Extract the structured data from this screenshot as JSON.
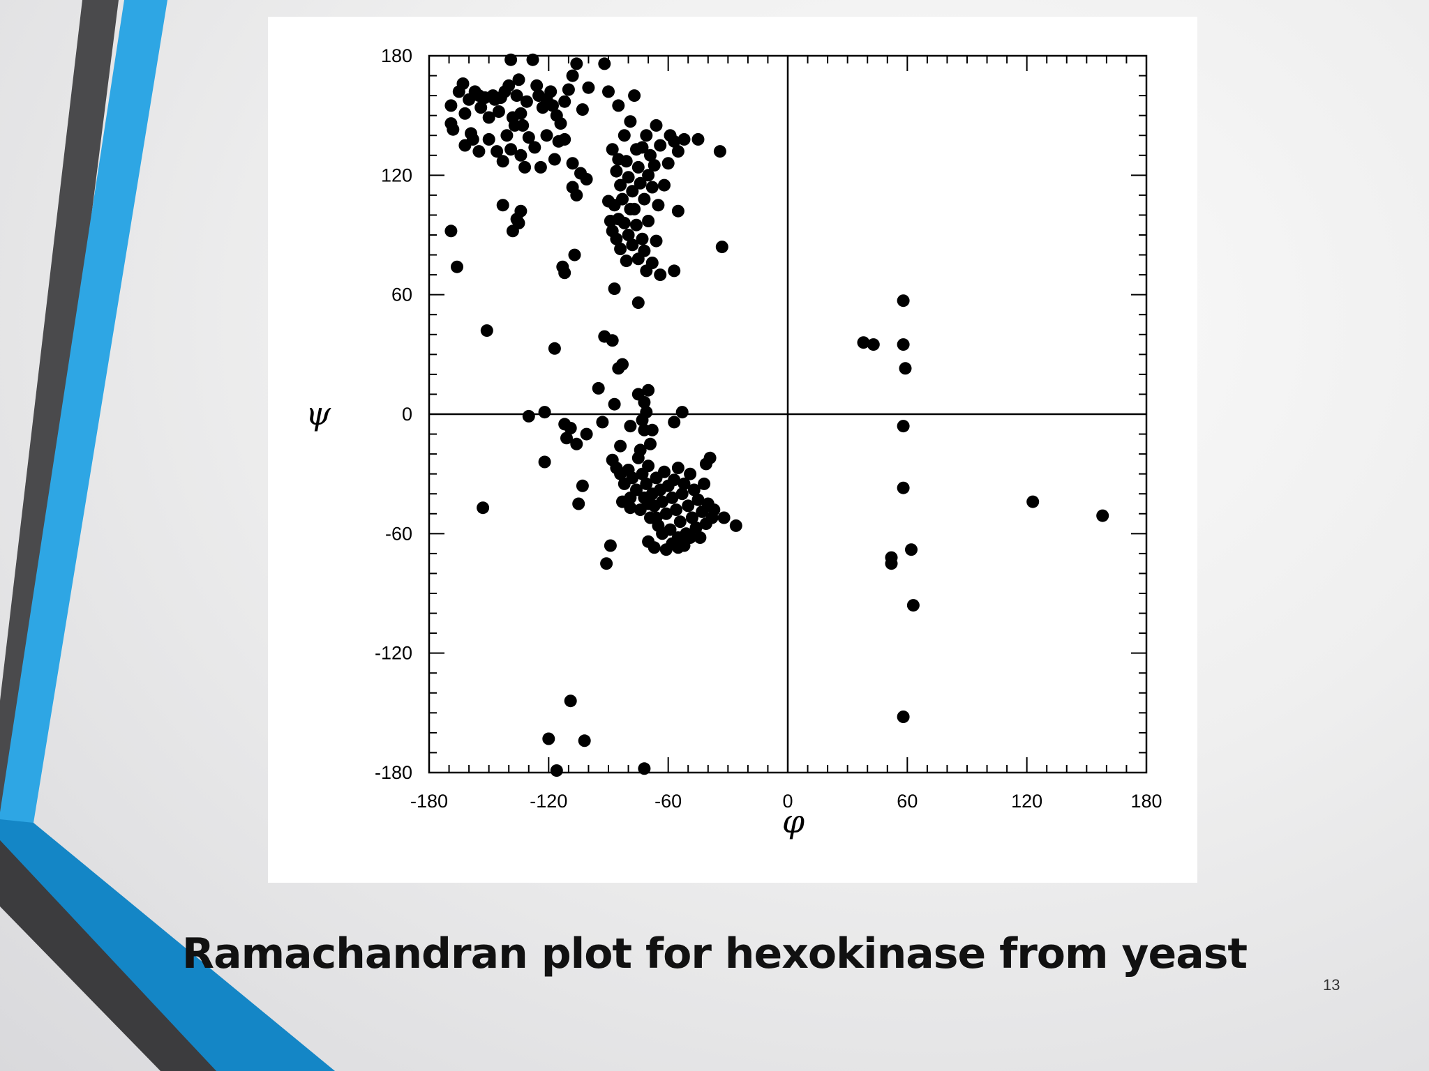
{
  "slide": {
    "title": "Ramachandran plot for hexokinase from yeast",
    "page_number": "13"
  },
  "colors": {
    "accent_blue": "#2ea6e4",
    "accent_blue_dark": "#1486c6",
    "accent_dark": "#4a4a4c",
    "points": "#000000"
  },
  "chart_data": {
    "type": "scatter",
    "title": "",
    "xlabel": "φ",
    "ylabel": "ψ",
    "xlim": [
      -180,
      180
    ],
    "ylim": [
      -180,
      180
    ],
    "xticks": [
      "-180",
      "-120",
      "-60",
      "0",
      "60",
      "120",
      "180"
    ],
    "yticks": [
      "180",
      "120",
      "60",
      "0",
      "-60",
      "-120",
      "-180"
    ],
    "grid": false,
    "zero_lines": true,
    "points": [
      [
        -169,
        155
      ],
      [
        -169,
        146
      ],
      [
        -168,
        143
      ],
      [
        -165,
        162
      ],
      [
        -163,
        166
      ],
      [
        -162,
        151
      ],
      [
        -160,
        158
      ],
      [
        -159,
        141
      ],
      [
        -157,
        162
      ],
      [
        -155,
        160
      ],
      [
        -154,
        154
      ],
      [
        -152,
        159
      ],
      [
        -150,
        149
      ],
      [
        -148,
        160
      ],
      [
        -147,
        158
      ],
      [
        -145,
        152
      ],
      [
        -144,
        159
      ],
      [
        -142,
        162
      ],
      [
        -140,
        165
      ],
      [
        -139,
        178
      ],
      [
        -138,
        149
      ],
      [
        -136,
        160
      ],
      [
        -135,
        168
      ],
      [
        -134,
        151
      ],
      [
        -133,
        145
      ],
      [
        -131,
        157
      ],
      [
        -128,
        178
      ],
      [
        -126,
        165
      ],
      [
        -125,
        160
      ],
      [
        -123,
        154
      ],
      [
        -121,
        158
      ],
      [
        -119,
        162
      ],
      [
        -118,
        155
      ],
      [
        -116,
        150
      ],
      [
        -114,
        146
      ],
      [
        -112,
        157
      ],
      [
        -110,
        163
      ],
      [
        -108,
        170
      ],
      [
        -106,
        176
      ],
      [
        -103,
        153
      ],
      [
        -100,
        164
      ],
      [
        -92,
        176
      ],
      [
        -90,
        162
      ],
      [
        -85,
        155
      ],
      [
        -79,
        147
      ],
      [
        -77,
        160
      ],
      [
        -162,
        135
      ],
      [
        -158,
        138
      ],
      [
        -155,
        132
      ],
      [
        -150,
        138
      ],
      [
        -146,
        132
      ],
      [
        -143,
        127
      ],
      [
        -141,
        140
      ],
      [
        -139,
        133
      ],
      [
        -137,
        145
      ],
      [
        -134,
        130
      ],
      [
        -132,
        124
      ],
      [
        -130,
        139
      ],
      [
        -127,
        134
      ],
      [
        -124,
        124
      ],
      [
        -121,
        140
      ],
      [
        -117,
        128
      ],
      [
        -115,
        137
      ],
      [
        -112,
        138
      ],
      [
        -108,
        126
      ],
      [
        -104,
        121
      ],
      [
        -101,
        118
      ],
      [
        -108,
        114
      ],
      [
        -106,
        110
      ],
      [
        -88,
        133
      ],
      [
        -86,
        122
      ],
      [
        -85,
        128
      ],
      [
        -84,
        115
      ],
      [
        -83,
        108
      ],
      [
        -82,
        140
      ],
      [
        -81,
        127
      ],
      [
        -80,
        119
      ],
      [
        -78,
        112
      ],
      [
        -77,
        103
      ],
      [
        -76,
        133
      ],
      [
        -75,
        124
      ],
      [
        -74,
        116
      ],
      [
        -73,
        134
      ],
      [
        -72,
        108
      ],
      [
        -71,
        140
      ],
      [
        -70,
        120
      ],
      [
        -69,
        130
      ],
      [
        -68,
        114
      ],
      [
        -67,
        125
      ],
      [
        -66,
        145
      ],
      [
        -65,
        105
      ],
      [
        -64,
        135
      ],
      [
        -62,
        115
      ],
      [
        -60,
        126
      ],
      [
        -59,
        140
      ],
      [
        -57,
        137
      ],
      [
        -55,
        132
      ],
      [
        -52,
        138
      ],
      [
        -45,
        138
      ],
      [
        -34,
        132
      ],
      [
        -90,
        107
      ],
      [
        -89,
        97
      ],
      [
        -88,
        92
      ],
      [
        -87,
        105
      ],
      [
        -86,
        88
      ],
      [
        -85,
        98
      ],
      [
        -84,
        83
      ],
      [
        -82,
        96
      ],
      [
        -81,
        77
      ],
      [
        -80,
        90
      ],
      [
        -79,
        103
      ],
      [
        -78,
        85
      ],
      [
        -76,
        95
      ],
      [
        -75,
        78
      ],
      [
        -73,
        88
      ],
      [
        -72,
        82
      ],
      [
        -71,
        72
      ],
      [
        -70,
        97
      ],
      [
        -68,
        76
      ],
      [
        -66,
        87
      ],
      [
        -64,
        70
      ],
      [
        -57,
        72
      ],
      [
        -55,
        102
      ],
      [
        -33,
        84
      ],
      [
        -87,
        63
      ],
      [
        -75,
        56
      ],
      [
        -169,
        92
      ],
      [
        -166,
        74
      ],
      [
        -143,
        105
      ],
      [
        -138,
        92
      ],
      [
        -136,
        98
      ],
      [
        -134,
        102
      ],
      [
        -135,
        96
      ],
      [
        -113,
        74
      ],
      [
        -112,
        71
      ],
      [
        -107,
        80
      ],
      [
        -151,
        42
      ],
      [
        -117,
        33
      ],
      [
        -95,
        13
      ],
      [
        -92,
        39
      ],
      [
        -88,
        37
      ],
      [
        -85,
        23
      ],
      [
        -83,
        25
      ],
      [
        -87,
        5
      ],
      [
        -75,
        10
      ],
      [
        -72,
        6
      ],
      [
        -70,
        12
      ],
      [
        -73,
        -3
      ],
      [
        -68,
        -8
      ],
      [
        -71,
        1
      ],
      [
        -130,
        -1
      ],
      [
        -122,
        1
      ],
      [
        -112,
        -5
      ],
      [
        -111,
        -12
      ],
      [
        -109,
        -7
      ],
      [
        -106,
        -15
      ],
      [
        -101,
        -10
      ],
      [
        -93,
        -4
      ],
      [
        -84,
        -16
      ],
      [
        -79,
        -6
      ],
      [
        -74,
        -18
      ],
      [
        -72,
        -8
      ],
      [
        -69,
        -15
      ],
      [
        -57,
        -4
      ],
      [
        -53,
        1
      ],
      [
        -122,
        -24
      ],
      [
        -153,
        -47
      ],
      [
        -103,
        -36
      ],
      [
        -105,
        -45
      ],
      [
        -88,
        -23
      ],
      [
        -86,
        -27
      ],
      [
        -84,
        -30
      ],
      [
        -82,
        -35
      ],
      [
        -80,
        -28
      ],
      [
        -79,
        -42
      ],
      [
        -78,
        -32
      ],
      [
        -76,
        -38
      ],
      [
        -75,
        -22
      ],
      [
        -74,
        -48
      ],
      [
        -73,
        -30
      ],
      [
        -72,
        -42
      ],
      [
        -71,
        -35
      ],
      [
        -70,
        -26
      ],
      [
        -69,
        -52
      ],
      [
        -68,
        -40
      ],
      [
        -67,
        -46
      ],
      [
        -66,
        -32
      ],
      [
        -65,
        -56
      ],
      [
        -64,
        -38
      ],
      [
        -63,
        -44
      ],
      [
        -62,
        -29
      ],
      [
        -61,
        -50
      ],
      [
        -60,
        -36
      ],
      [
        -59,
        -58
      ],
      [
        -58,
        -42
      ],
      [
        -57,
        -33
      ],
      [
        -56,
        -48
      ],
      [
        -55,
        -27
      ],
      [
        -54,
        -54
      ],
      [
        -53,
        -40
      ],
      [
        -52,
        -35
      ],
      [
        -51,
        -60
      ],
      [
        -50,
        -46
      ],
      [
        -49,
        -30
      ],
      [
        -48,
        -52
      ],
      [
        -47,
        -38
      ],
      [
        -46,
        -57
      ],
      [
        -45,
        -43
      ],
      [
        -44,
        -62
      ],
      [
        -43,
        -49
      ],
      [
        -42,
        -35
      ],
      [
        -41,
        -55
      ],
      [
        -40,
        -45
      ],
      [
        -39,
        -22
      ],
      [
        -38,
        -52
      ],
      [
        -41,
        -25
      ],
      [
        -37,
        -48
      ],
      [
        -32,
        -52
      ],
      [
        -26,
        -56
      ],
      [
        -83,
        -44
      ],
      [
        -79,
        -47
      ],
      [
        -70,
        -45
      ],
      [
        -66,
        -52
      ],
      [
        -63,
        -60
      ],
      [
        -58,
        -65
      ],
      [
        -55,
        -62
      ],
      [
        -52,
        -66
      ],
      [
        -49,
        -62
      ],
      [
        -70,
        -64
      ],
      [
        -67,
        -67
      ],
      [
        -61,
        -68
      ],
      [
        -55,
        -67
      ],
      [
        -89,
        -66
      ],
      [
        -91,
        -75
      ],
      [
        -72,
        -178
      ],
      [
        -116,
        -179
      ],
      [
        -120,
        -163
      ],
      [
        -102,
        -164
      ],
      [
        -109,
        -144
      ],
      [
        38,
        36
      ],
      [
        43,
        35
      ],
      [
        58,
        57
      ],
      [
        58,
        35
      ],
      [
        59,
        23
      ],
      [
        58,
        -6
      ],
      [
        58,
        -37
      ],
      [
        52,
        -72
      ],
      [
        52,
        -75
      ],
      [
        62,
        -68
      ],
      [
        63,
        -96
      ],
      [
        58,
        -152
      ],
      [
        123,
        -44
      ],
      [
        158,
        -51
      ]
    ]
  }
}
